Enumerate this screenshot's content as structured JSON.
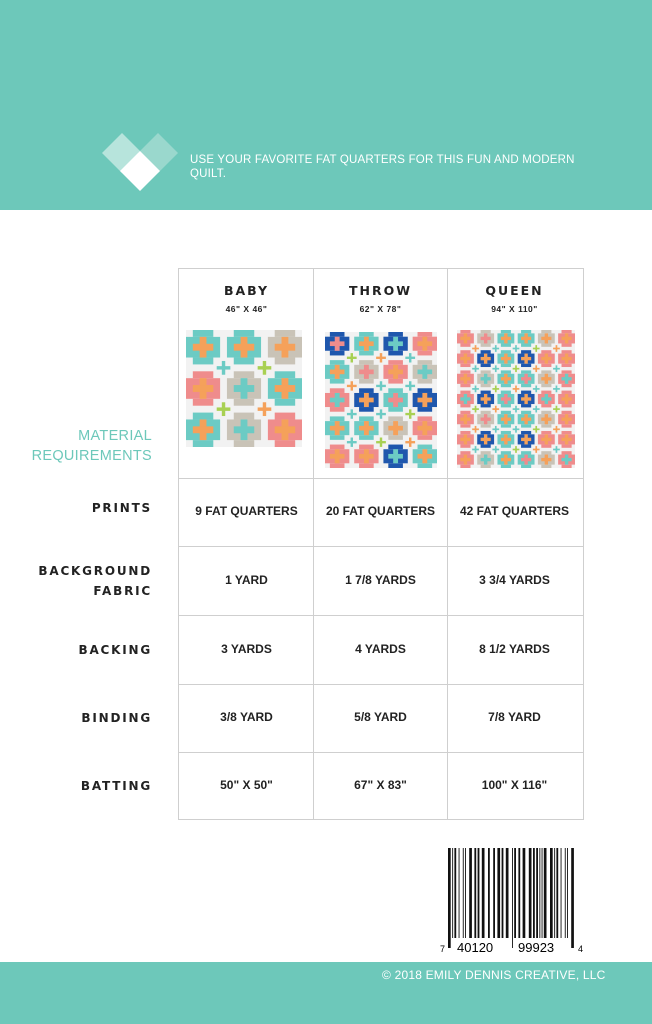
{
  "header": {
    "tagline": "USE YOUR FAVORITE FAT QUARTERS FOR THIS FUN AND MODERN QUILT.",
    "logo": "heart-diamond-logo"
  },
  "colors": {
    "teal": "#6dc8ba",
    "pink": "#ef8c8c",
    "tan": "#c9c3b7",
    "blue": "#1f57ad",
    "aqua": "#6ccbc4",
    "orange": "#f5a15a",
    "green": "#a8d052"
  },
  "table": {
    "section_label": "MATERIAL REQUIREMENTS",
    "sizes": [
      {
        "name": "BABY",
        "dims": "46\" X 46\""
      },
      {
        "name": "THROW",
        "dims": "62\" X 78\""
      },
      {
        "name": "QUEEN",
        "dims": "94\" X 110\""
      }
    ],
    "rows": [
      {
        "label": "PRINTS",
        "values": [
          "9 FAT QUARTERS",
          "20 FAT QUARTERS",
          "42 FAT QUARTERS"
        ]
      },
      {
        "label": "BACKGROUND FABRIC",
        "values": [
          "1 YARD",
          "1 7/8 YARDS",
          "3 3/4 YARDS"
        ]
      },
      {
        "label": "BACKING",
        "values": [
          "3 YARDS",
          "4 YARDS",
          "8 1/2 YARDS"
        ]
      },
      {
        "label": "BINDING",
        "values": [
          "3/8 YARD",
          "5/8 YARD",
          "7/8 YARD"
        ]
      },
      {
        "label": "BATTING",
        "values": [
          "50\" X 50\"",
          "67\" X 83\"",
          "100\" X 116\""
        ]
      }
    ]
  },
  "barcode": {
    "first": "7",
    "left": "40120",
    "right": "99923",
    "check": "4"
  },
  "footer": {
    "copyright": "© 2018 EMILY DENNIS CREATIVE, LLC"
  }
}
